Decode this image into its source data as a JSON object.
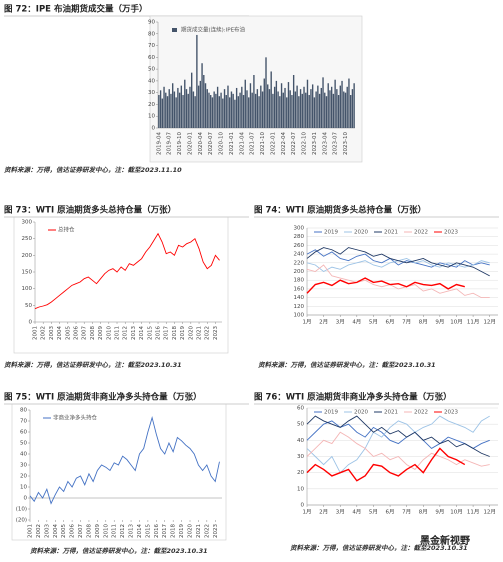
{
  "chart_data": [
    {
      "type": "bar",
      "title": "图 72：IPE 布油期货成交量（万手）",
      "source": "资料来源：万得，信达证券研发中心，注：截至2023.11.10",
      "series": [
        {
          "name": "期货成交量(连续):IPE布油",
          "color": "#44546a",
          "values": [
            28,
            32,
            25,
            35,
            30,
            27,
            33,
            29,
            38,
            31,
            26,
            34,
            30,
            36,
            28,
            41,
            33,
            29,
            35,
            47,
            31,
            27,
            79,
            36,
            40,
            55,
            45,
            38,
            33,
            30,
            28,
            26,
            31,
            29,
            35,
            27,
            30,
            25,
            33,
            28,
            36,
            26,
            31,
            29,
            24,
            34,
            27,
            30,
            35,
            28,
            41,
            32,
            26,
            38,
            30,
            45,
            29,
            33,
            27,
            36,
            31,
            42,
            60,
            37,
            33,
            48,
            29,
            35,
            40,
            31,
            27,
            38,
            30,
            34,
            26,
            39,
            32,
            28,
            45,
            31,
            36,
            27,
            33,
            29,
            35,
            30,
            41,
            28,
            33,
            37,
            26,
            31,
            36,
            29,
            34,
            43,
            30,
            27,
            38,
            32,
            35,
            29,
            41,
            33,
            28,
            36,
            40,
            31,
            30,
            35,
            42,
            28,
            33,
            38
          ]
        }
      ],
      "categories": [
        "2019-04",
        null,
        null,
        null,
        null,
        null,
        "2019-07",
        null,
        null,
        null,
        null,
        null,
        "2019-10",
        null,
        null,
        null,
        null,
        null,
        "2020-01",
        null,
        null,
        null,
        null,
        null,
        "2020-04",
        null,
        null,
        null,
        null,
        null,
        "2020-07",
        null,
        null,
        null,
        null,
        null,
        "2020-10",
        null,
        null,
        null,
        null,
        null,
        "2021-01",
        null,
        null,
        null,
        null,
        null,
        "2021-04",
        null,
        null,
        null,
        null,
        null,
        "2021-07",
        null,
        null,
        null,
        null,
        null,
        "2021-10",
        null,
        null,
        null,
        null,
        null,
        "2022-01",
        null,
        null,
        null,
        null,
        null,
        "2022-04",
        null,
        null,
        null,
        null,
        null,
        "2022-07",
        null,
        null,
        null,
        null,
        null,
        "2022-10",
        null,
        null,
        null,
        null,
        null,
        "2023-01",
        null,
        null,
        null,
        null,
        null,
        "2023-04",
        null,
        null,
        null,
        null,
        null,
        "2023-07",
        null,
        null,
        null,
        null,
        null,
        "2023-10",
        null,
        null,
        null,
        null,
        null
      ],
      "ylim": [
        0,
        90
      ],
      "yticks": [
        0,
        10,
        20,
        30,
        40,
        50,
        60,
        70,
        80,
        90
      ],
      "grid": false
    },
    {
      "type": "line",
      "title": "图 73：WTI 原油期货多头总持仓量（万张）",
      "source": "资料来源：万得，信达证券研发中心，注：截至2023.10.31",
      "x": [
        2001,
        2001.5,
        2002,
        2002.5,
        2003,
        2003.5,
        2004,
        2004.5,
        2005,
        2005.5,
        2006,
        2006.5,
        2007,
        2007.5,
        2008,
        2008.5,
        2009,
        2009.5,
        2010,
        2010.5,
        2011,
        2011.5,
        2012,
        2012.5,
        2013,
        2013.5,
        2014,
        2014.5,
        2015,
        2015.5,
        2016,
        2016.5,
        2017,
        2017.5,
        2018,
        2018.5,
        2019,
        2019.5,
        2020,
        2020.5,
        2021,
        2021.5,
        2022,
        2022.5,
        2023,
        2023.5
      ],
      "series": [
        {
          "name": "总持仓",
          "color": "#ff0000",
          "values": [
            40,
            45,
            48,
            52,
            60,
            70,
            80,
            90,
            100,
            110,
            115,
            120,
            130,
            135,
            125,
            115,
            130,
            145,
            155,
            160,
            150,
            165,
            155,
            175,
            170,
            180,
            190,
            210,
            225,
            245,
            265,
            240,
            205,
            210,
            200,
            230,
            225,
            235,
            240,
            250,
            220,
            180,
            160,
            170,
            200,
            185
          ]
        }
      ],
      "xlim": [
        2001,
        2023.8
      ],
      "xticks": [
        2001,
        2002,
        2003,
        2004,
        2005,
        2006,
        2007,
        2008,
        2009,
        2010,
        2011,
        2012,
        2013,
        2014,
        2015,
        2016,
        2017,
        2018,
        2019,
        2020,
        2021,
        2022,
        2023
      ],
      "ylim": [
        0,
        300
      ],
      "yticks": [
        0,
        50,
        100,
        150,
        200,
        250,
        300
      ],
      "grid": false
    },
    {
      "type": "line",
      "title": "图 74：WTI 原油期货多头总持仓量（万张）",
      "source": "资料来源：万得，信达证券研发中心，注：截至2023.10.31",
      "x": [
        1,
        1.5,
        2,
        2.5,
        3,
        3.5,
        4,
        4.5,
        5,
        5.5,
        6,
        6.5,
        7,
        7.5,
        8,
        8.5,
        9,
        9.5,
        10,
        10.5,
        11,
        11.5,
        12
      ],
      "series": [
        {
          "name": "2019",
          "color": "#4472c4",
          "values": [
            240,
            250,
            235,
            245,
            230,
            225,
            235,
            240,
            225,
            220,
            230,
            215,
            225,
            220,
            215,
            210,
            220,
            215,
            210,
            225,
            215,
            220,
            215
          ]
        },
        {
          "name": "2020",
          "color": "#9dc3e6",
          "values": [
            220,
            215,
            200,
            210,
            205,
            215,
            220,
            225,
            215,
            210,
            220,
            225,
            230,
            220,
            225,
            215,
            210,
            220,
            215,
            210,
            215,
            225,
            220
          ]
        },
        {
          "name": "2021",
          "color": "#1f3864",
          "values": [
            230,
            245,
            255,
            250,
            240,
            255,
            250,
            245,
            235,
            240,
            230,
            225,
            220,
            225,
            230,
            220,
            215,
            210,
            220,
            215,
            210,
            200,
            190
          ]
        },
        {
          "name": "2022",
          "color": "#f4b6b6",
          "values": [
            205,
            200,
            215,
            190,
            185,
            180,
            175,
            180,
            170,
            165,
            170,
            160,
            165,
            170,
            155,
            160,
            150,
            155,
            160,
            145,
            150,
            140,
            140
          ]
        },
        {
          "name": "2023",
          "color": "#ff0000",
          "values": [
            150,
            170,
            175,
            168,
            180,
            172,
            175,
            185,
            175,
            178,
            170,
            172,
            165,
            175,
            170,
            168,
            172,
            160,
            170,
            165,
            null,
            null,
            null
          ]
        }
      ],
      "xlim": [
        1,
        12.5
      ],
      "xticks": [
        {
          "value": 1,
          "label": "1月"
        },
        {
          "value": 2,
          "label": "2月"
        },
        {
          "value": 3,
          "label": "3月"
        },
        {
          "value": 4,
          "label": "4月"
        },
        {
          "value": 5,
          "label": "5月"
        },
        {
          "value": 6,
          "label": "6月"
        },
        {
          "value": 7,
          "label": "7月"
        },
        {
          "value": 8,
          "label": "8月"
        },
        {
          "value": 9,
          "label": "9月"
        },
        {
          "value": 10,
          "label": "10月"
        },
        {
          "value": 11,
          "label": "11月"
        },
        {
          "value": 12,
          "label": "12月"
        }
      ],
      "ylim": [
        100,
        300
      ],
      "yticks": [
        100,
        120,
        140,
        160,
        180,
        200,
        220,
        240,
        260,
        280,
        300
      ],
      "grid": true
    },
    {
      "type": "line",
      "title": "图 75：WTI 原油期货非商业净多头持仓量（万张）",
      "source": "资料来源：万得，信达证券研发中心，注：截至2023.10.31",
      "x": [
        2001,
        2001.5,
        2002,
        2002.5,
        2003,
        2003.5,
        2004,
        2004.5,
        2005,
        2005.5,
        2006,
        2006.5,
        2007,
        2007.5,
        2008,
        2008.5,
        2009,
        2009.5,
        2010,
        2010.5,
        2011,
        2011.5,
        2012,
        2012.5,
        2013,
        2013.5,
        2014,
        2014.5,
        2015,
        2015.5,
        2016,
        2016.5,
        2017,
        2017.5,
        2018,
        2018.5,
        2019,
        2019.5,
        2020,
        2020.5,
        2021,
        2021.5,
        2022,
        2022.5,
        2023,
        2023.5
      ],
      "series": [
        {
          "name": "非商业净多头持仓",
          "color": "#4472c4",
          "values": [
            2,
            -3,
            5,
            0,
            8,
            -5,
            3,
            10,
            6,
            15,
            10,
            18,
            20,
            12,
            22,
            15,
            25,
            30,
            28,
            25,
            32,
            30,
            38,
            35,
            30,
            25,
            40,
            45,
            60,
            73,
            58,
            45,
            40,
            50,
            42,
            55,
            52,
            48,
            45,
            40,
            30,
            25,
            30,
            20,
            15,
            33
          ]
        }
      ],
      "xlim": [
        2001,
        2023.8
      ],
      "xticks": [
        2001,
        2002,
        2003,
        2004,
        2005,
        2006,
        2007,
        2008,
        2009,
        2010,
        2011,
        2012,
        2013,
        2014,
        2015,
        2016,
        2017,
        2018,
        2019,
        2020,
        2021,
        2022,
        2023
      ],
      "ylim": [
        -20,
        80
      ],
      "yticks": [
        {
          "value": -20,
          "label": "(20)"
        },
        {
          "value": -10,
          "label": "(10)"
        },
        0,
        10,
        20,
        30,
        40,
        50,
        60,
        70,
        80
      ],
      "grid": false
    },
    {
      "type": "line",
      "title": "图 76：WTI 原油期货非商业净多头持仓量（万张）",
      "source": "资料来源：万得，信达证券研发中心，注：截至2023.10.31",
      "x": [
        1,
        1.5,
        2,
        2.5,
        3,
        3.5,
        4,
        4.5,
        5,
        5.5,
        6,
        6.5,
        7,
        7.5,
        8,
        8.5,
        9,
        9.5,
        10,
        10.5,
        11,
        11.5,
        12
      ],
      "series": [
        {
          "name": "2019",
          "color": "#4472c4",
          "values": [
            40,
            45,
            50,
            52,
            48,
            50,
            45,
            42,
            48,
            45,
            40,
            38,
            42,
            45,
            40,
            35,
            38,
            42,
            40,
            38,
            35,
            38,
            40
          ]
        },
        {
          "name": "2020",
          "color": "#9dc3e6",
          "values": [
            35,
            30,
            25,
            30,
            20,
            25,
            28,
            35,
            45,
            42,
            48,
            52,
            50,
            45,
            48,
            50,
            55,
            52,
            50,
            48,
            45,
            52,
            55
          ]
        },
        {
          "name": "2021",
          "color": "#1f3864",
          "values": [
            50,
            55,
            52,
            50,
            48,
            52,
            55,
            50,
            45,
            48,
            44,
            46,
            42,
            45,
            40,
            42,
            38,
            40,
            36,
            38,
            35,
            32,
            30
          ]
        },
        {
          "name": "2022",
          "color": "#f4b6b6",
          "values": [
            30,
            35,
            40,
            38,
            45,
            42,
            38,
            35,
            30,
            32,
            28,
            30,
            25,
            22,
            28,
            32,
            30,
            28,
            25,
            28,
            26,
            24,
            25
          ]
        },
        {
          "name": "2023",
          "color": "#ff0000",
          "values": [
            20,
            25,
            22,
            18,
            20,
            22,
            15,
            18,
            25,
            24,
            20,
            18,
            22,
            25,
            20,
            28,
            35,
            30,
            28,
            25,
            null,
            null,
            null
          ]
        }
      ],
      "xlim": [
        1,
        12.5
      ],
      "xticks": [
        {
          "value": 1,
          "label": "1月"
        },
        {
          "value": 2,
          "label": "2月"
        },
        {
          "value": 3,
          "label": "3月"
        },
        {
          "value": 4,
          "label": "4月"
        },
        {
          "value": 5,
          "label": "5月"
        },
        {
          "value": 6,
          "label": "6月"
        },
        {
          "value": 7,
          "label": "7月"
        },
        {
          "value": 8,
          "label": "8月"
        },
        {
          "value": 9,
          "label": "9月"
        },
        {
          "value": 10,
          "label": "10月"
        },
        {
          "value": 11,
          "label": "11月"
        },
        {
          "value": 12,
          "label": "12月"
        }
      ],
      "ylim": [
        0,
        60
      ],
      "yticks": [
        0,
        10,
        20,
        30,
        40,
        50,
        60
      ],
      "grid": true
    }
  ],
  "watermark": "黑金新视野"
}
